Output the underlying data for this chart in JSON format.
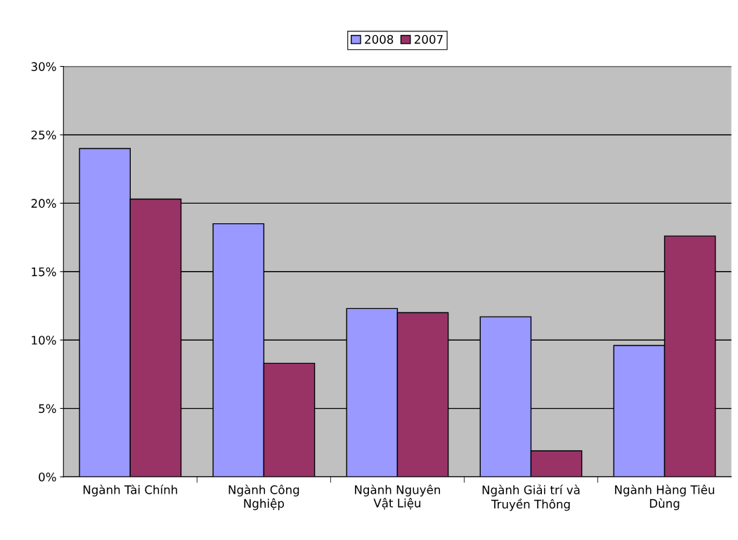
{
  "chart_data": {
    "type": "bar",
    "categories": [
      "Ngành Tài Chính",
      "Ngành Công\nNghiệp",
      "Ngành Nguyên\nVật Liệu",
      "Ngành Giải trí và\nTruyền Thông",
      "Ngành Hàng Tiêu\nDùng"
    ],
    "series": [
      {
        "name": "2008",
        "color": "#9999ff",
        "values": [
          24.0,
          18.5,
          12.3,
          11.7,
          9.6
        ]
      },
      {
        "name": "2007",
        "color": "#993366",
        "values": [
          20.3,
          8.3,
          12.0,
          1.9,
          17.6
        ]
      }
    ],
    "ylim": [
      0,
      30
    ],
    "yticks": [
      {
        "value": 0,
        "label": "0%"
      },
      {
        "value": 5,
        "label": "5%"
      },
      {
        "value": 10,
        "label": "10%"
      },
      {
        "value": 15,
        "label": "15%"
      },
      {
        "value": 20,
        "label": "20%"
      },
      {
        "value": 25,
        "label": "25%"
      },
      {
        "value": 30,
        "label": "30%"
      }
    ],
    "grid": "y",
    "legend": "top"
  }
}
